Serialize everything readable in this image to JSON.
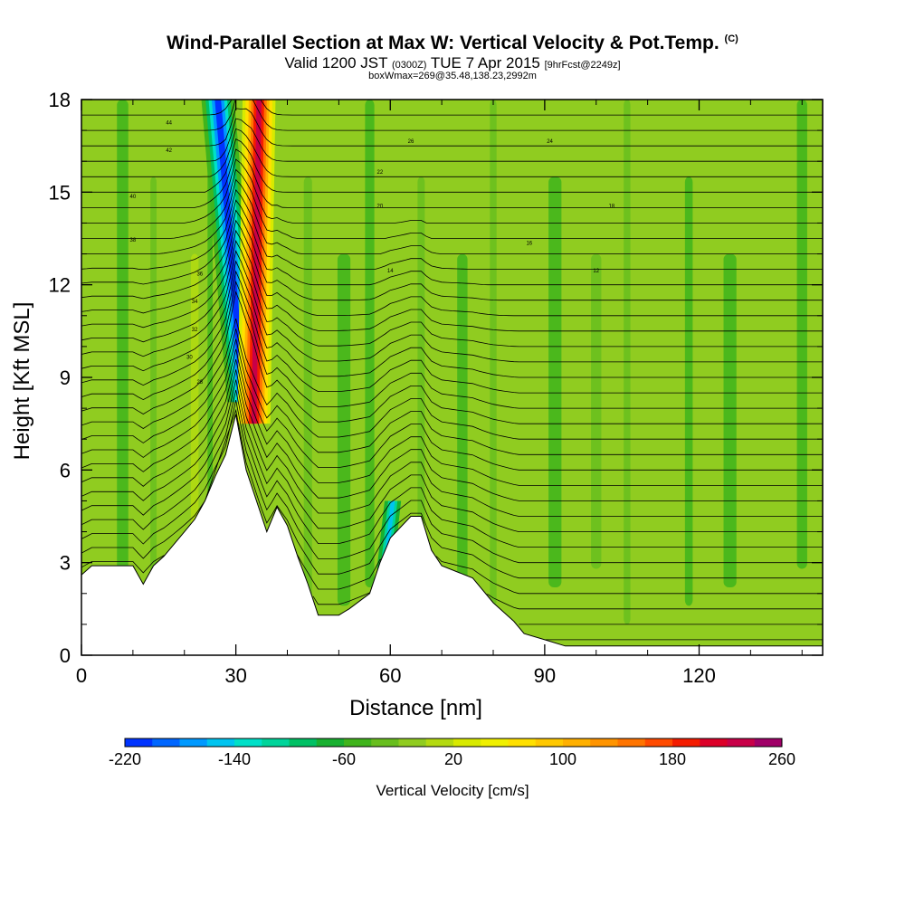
{
  "header": {
    "title": "Wind-Parallel Section at Max W: Vertical Velocity & Pot.Temp.",
    "copyright": "(C)",
    "valid_prefix": "Valid 1200 JST",
    "valid_utc": "(0300Z)",
    "valid_date": "TUE 7 Apr 2015",
    "forecast": "[9hrFcst@2249z]",
    "box_info": "boxWmax=269@35.48,138.23,2992m"
  },
  "chart_data": {
    "type": "heatmap",
    "title": "Wind-Parallel Section at Max W: Vertical Velocity & Pot.Temp.",
    "xlabel": "Distance [nm]",
    "ylabel": "Height [Kft MSL]",
    "xlim": [
      0,
      144
    ],
    "ylim": [
      0,
      18
    ],
    "x_ticks": [
      "0",
      "30",
      "60",
      "90",
      "120"
    ],
    "y_ticks": [
      "0",
      "3",
      "6",
      "9",
      "12",
      "15",
      "18"
    ],
    "colorbar": {
      "label": "Vertical Velocity [cm/s]",
      "min": -220,
      "max": 260,
      "step": 20,
      "tick_labels": [
        "-220",
        "-140",
        "-60",
        "20",
        "100",
        "180",
        "260"
      ],
      "colors": [
        "#0000ff",
        "#0033ff",
        "#0066ff",
        "#0099ff",
        "#00c4f0",
        "#00e0c8",
        "#00d49a",
        "#00c064",
        "#18b030",
        "#40b41c",
        "#68be1e",
        "#90cc20",
        "#b4da10",
        "#d8ea00",
        "#f0f000",
        "#ffe000",
        "#ffc800",
        "#ffb000",
        "#ff9400",
        "#ff7400",
        "#ff4a00",
        "#f41c00",
        "#dc0028",
        "#c80048",
        "#a00068",
        "#78007e",
        "#5a008e"
      ]
    },
    "terrain_kft": [
      [
        0,
        2.6
      ],
      [
        2,
        2.9
      ],
      [
        10,
        2.9
      ],
      [
        12,
        2.3
      ],
      [
        14,
        2.9
      ],
      [
        16,
        3.2
      ],
      [
        18,
        3.6
      ],
      [
        20,
        4.0
      ],
      [
        22,
        4.4
      ],
      [
        24,
        5.0
      ],
      [
        26,
        5.8
      ],
      [
        28,
        6.5
      ],
      [
        30,
        7.8
      ],
      [
        32,
        6.0
      ],
      [
        34,
        5.0
      ],
      [
        36,
        4.0
      ],
      [
        38,
        4.8
      ],
      [
        40,
        4.2
      ],
      [
        42,
        3.2
      ],
      [
        44,
        2.3
      ],
      [
        46,
        1.3
      ],
      [
        50,
        1.3
      ],
      [
        52,
        1.5
      ],
      [
        56,
        2.0
      ],
      [
        58,
        3.0
      ],
      [
        60,
        3.8
      ],
      [
        64,
        4.5
      ],
      [
        66,
        4.5
      ],
      [
        68,
        3.4
      ],
      [
        70,
        2.9
      ],
      [
        76,
        2.5
      ],
      [
        80,
        1.7
      ],
      [
        84,
        1.1
      ],
      [
        86,
        0.7
      ],
      [
        90,
        0.5
      ],
      [
        94,
        0.3
      ],
      [
        144,
        0.3
      ]
    ],
    "theta_contour_labels": [
      "44",
      "42",
      "40",
      "38",
      "36",
      "34",
      "32",
      "30",
      "28",
      "26",
      "24",
      "22",
      "20",
      "18",
      "16",
      "14",
      "12"
    ],
    "w_features": [
      {
        "name": "updraft",
        "x": 33,
        "y": [
          8.0,
          18
        ],
        "value": 260
      },
      {
        "name": "downdraft",
        "x": 30,
        "y": [
          8.5,
          18
        ],
        "value": -220
      },
      {
        "name": "lee-downdraft",
        "x": 60,
        "y": [
          3,
          5
        ],
        "value": -120
      }
    ]
  }
}
